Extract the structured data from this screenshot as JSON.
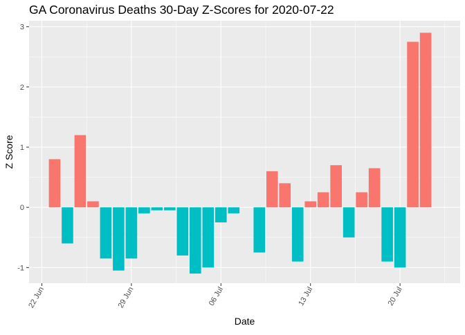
{
  "chart_data": {
    "type": "bar",
    "title": "GA Coronavirus Deaths 30-Day Z-Scores for 2020-07-22",
    "xlabel": "Date",
    "ylabel": "Z Score",
    "x_range_day_offsets": [
      -1.0,
      32.7
    ],
    "ylim": [
      -1.26,
      3.1
    ],
    "x_ticks": [
      {
        "label": "22 Jun",
        "offset": 0
      },
      {
        "label": "29 Jun",
        "offset": 7
      },
      {
        "label": "06 Jul",
        "offset": 14
      },
      {
        "label": "13 Jul",
        "offset": 21
      },
      {
        "label": "20 Jul",
        "offset": 28
      }
    ],
    "y_ticks": [
      -1,
      0,
      1,
      2,
      3
    ],
    "grid": true,
    "legend": "none",
    "colors": {
      "positive": "#F8766D",
      "negative": "#00BFC4",
      "panel": "#EBEBEB",
      "grid_major": "#FFFFFF",
      "axis_text": "#4D4D4D"
    },
    "series": [
      {
        "name": "Z Score",
        "points": [
          {
            "date": "2020-06-23",
            "offset": 1,
            "value": 0.8
          },
          {
            "date": "2020-06-24",
            "offset": 2,
            "value": -0.6
          },
          {
            "date": "2020-06-25",
            "offset": 3,
            "value": 1.2
          },
          {
            "date": "2020-06-26",
            "offset": 4,
            "value": 0.1
          },
          {
            "date": "2020-06-27",
            "offset": 5,
            "value": -0.85
          },
          {
            "date": "2020-06-28",
            "offset": 6,
            "value": -1.05
          },
          {
            "date": "2020-06-29",
            "offset": 7,
            "value": -0.85
          },
          {
            "date": "2020-06-30",
            "offset": 8,
            "value": -0.1
          },
          {
            "date": "2020-07-01",
            "offset": 9,
            "value": -0.05
          },
          {
            "date": "2020-07-02",
            "offset": 10,
            "value": -0.05
          },
          {
            "date": "2020-07-03",
            "offset": 11,
            "value": -0.8
          },
          {
            "date": "2020-07-04",
            "offset": 12,
            "value": -1.1
          },
          {
            "date": "2020-07-05",
            "offset": 13,
            "value": -1.0
          },
          {
            "date": "2020-07-06",
            "offset": 14,
            "value": -0.25
          },
          {
            "date": "2020-07-07",
            "offset": 15,
            "value": -0.1
          },
          {
            "date": "2020-07-09",
            "offset": 17,
            "value": -0.75
          },
          {
            "date": "2020-07-10",
            "offset": 18,
            "value": 0.6
          },
          {
            "date": "2020-07-11",
            "offset": 19,
            "value": 0.4
          },
          {
            "date": "2020-07-12",
            "offset": 20,
            "value": -0.9
          },
          {
            "date": "2020-07-13",
            "offset": 21,
            "value": 0.1
          },
          {
            "date": "2020-07-14",
            "offset": 22,
            "value": 0.25
          },
          {
            "date": "2020-07-15",
            "offset": 23,
            "value": 0.7
          },
          {
            "date": "2020-07-16",
            "offset": 24,
            "value": -0.5
          },
          {
            "date": "2020-07-17",
            "offset": 25,
            "value": 0.25
          },
          {
            "date": "2020-07-18",
            "offset": 26,
            "value": 0.65
          },
          {
            "date": "2020-07-19",
            "offset": 27,
            "value": -0.9
          },
          {
            "date": "2020-07-20",
            "offset": 28,
            "value": -1.0
          },
          {
            "date": "2020-07-21",
            "offset": 29,
            "value": 2.75
          },
          {
            "date": "2020-07-22",
            "offset": 30,
            "value": 2.9
          }
        ]
      }
    ]
  }
}
